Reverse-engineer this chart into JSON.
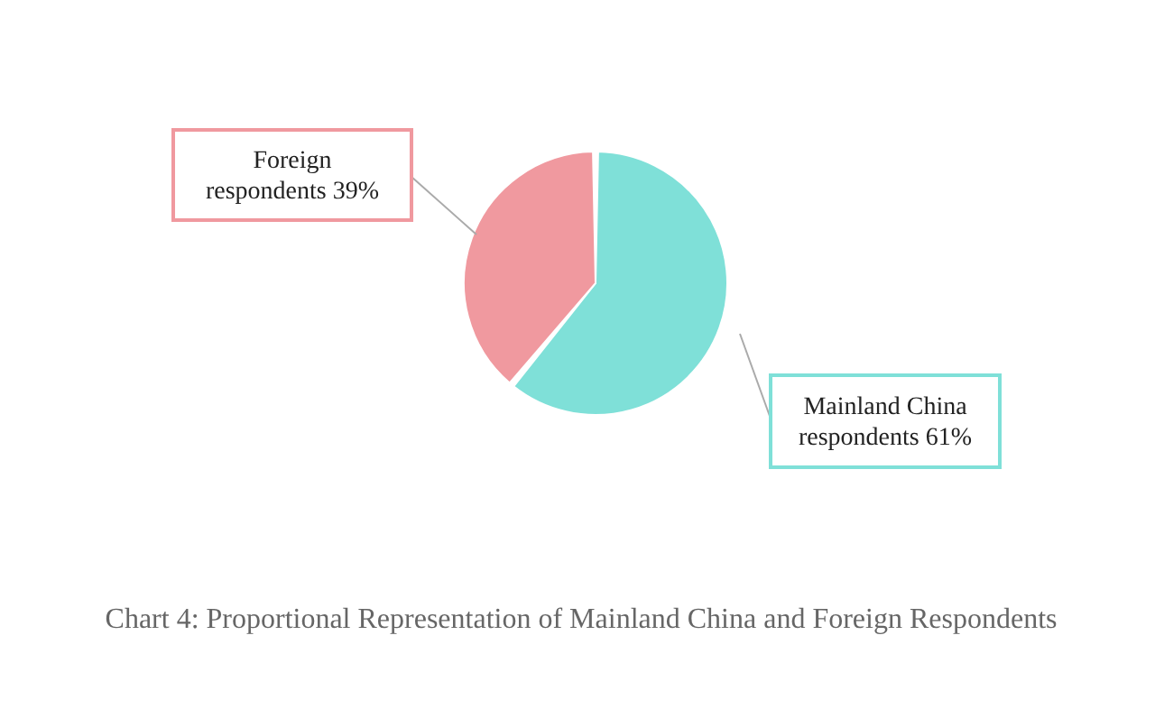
{
  "chart_data": {
    "type": "pie",
    "title": "Chart 4: Proportional Representation of Mainland China and Foreign Respondents",
    "categories": [
      "Mainland China respondents 61%",
      "Foreign respondents 39%"
    ],
    "values": [
      61,
      39
    ],
    "colors": [
      "#7fe0d8",
      "#f0999f"
    ]
  }
}
